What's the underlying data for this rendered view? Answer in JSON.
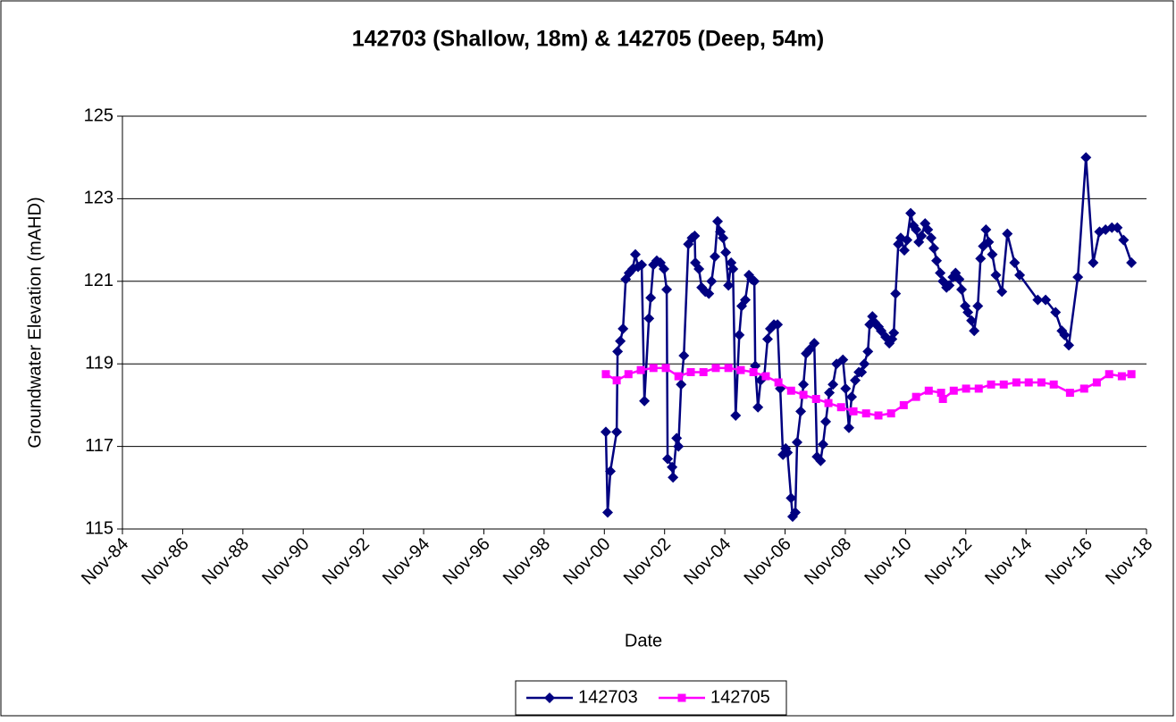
{
  "chart_data": {
    "type": "line",
    "title": "142703 (Shallow, 18m) & 142705 (Deep, 54m)",
    "x_label": "Date",
    "y_label": "Groundwater Elevation (mAHD)",
    "xlim": [
      1984.83,
      2018.83
    ],
    "xticks": [
      {
        "value": 1984.83,
        "label": "Nov-84"
      },
      {
        "value": 1986.83,
        "label": "Nov-86"
      },
      {
        "value": 1988.83,
        "label": "Nov-88"
      },
      {
        "value": 1990.83,
        "label": "Nov-90"
      },
      {
        "value": 1992.83,
        "label": "Nov-92"
      },
      {
        "value": 1994.83,
        "label": "Nov-94"
      },
      {
        "value": 1996.83,
        "label": "Nov-96"
      },
      {
        "value": 1998.83,
        "label": "Nov-98"
      },
      {
        "value": 2000.83,
        "label": "Nov-00"
      },
      {
        "value": 2002.83,
        "label": "Nov-02"
      },
      {
        "value": 2004.83,
        "label": "Nov-04"
      },
      {
        "value": 2006.83,
        "label": "Nov-06"
      },
      {
        "value": 2008.83,
        "label": "Nov-08"
      },
      {
        "value": 2010.83,
        "label": "Nov-10"
      },
      {
        "value": 2012.83,
        "label": "Nov-12"
      },
      {
        "value": 2014.83,
        "label": "Nov-14"
      },
      {
        "value": 2016.83,
        "label": "Nov-16"
      },
      {
        "value": 2018.83,
        "label": "Nov-18"
      }
    ],
    "ylim": [
      115,
      125
    ],
    "yticks": [
      115,
      117,
      119,
      121,
      123,
      125
    ],
    "grid": true,
    "legend": "bottom",
    "series": [
      {
        "name": "142703",
        "color": "#000080",
        "marker": "diamond",
        "x": [
          2000.88,
          2000.94,
          2001.03,
          2001.24,
          2001.27,
          2001.36,
          2001.45,
          2001.54,
          2001.65,
          2001.77,
          2001.86,
          2001.95,
          2002.07,
          2002.16,
          2002.31,
          2002.37,
          2002.46,
          2002.57,
          2002.69,
          2002.81,
          2002.9,
          2002.93,
          2003.08,
          2003.11,
          2003.23,
          2003.29,
          2003.38,
          2003.47,
          2003.62,
          2003.74,
          2003.83,
          2003.85,
          2003.97,
          2004.06,
          2004.18,
          2004.3,
          2004.39,
          2004.5,
          2004.59,
          2004.68,
          2004.77,
          2004.86,
          2004.95,
          2005.04,
          2005.1,
          2005.19,
          2005.31,
          2005.39,
          2005.51,
          2005.63,
          2005.72,
          2005.81,
          2005.84,
          2005.93,
          2006.02,
          2006.14,
          2006.25,
          2006.34,
          2006.46,
          2006.58,
          2006.67,
          2006.76,
          2006.85,
          2006.91,
          2007.03,
          2007.08,
          2007.17,
          2007.23,
          2007.35,
          2007.44,
          2007.53,
          2007.65,
          2007.8,
          2007.89,
          2008.01,
          2008.09,
          2008.18,
          2008.3,
          2008.42,
          2008.54,
          2008.75,
          2008.84,
          2008.95,
          2009.04,
          2009.16,
          2009.28,
          2009.37,
          2009.46,
          2009.58,
          2009.64,
          2009.73,
          2009.81,
          2009.93,
          2010.02,
          2010.17,
          2010.29,
          2010.38,
          2010.44,
          2010.5,
          2010.59,
          2010.67,
          2010.79,
          2010.88,
          2011.0,
          2011.09,
          2011.18,
          2011.27,
          2011.36,
          2011.48,
          2011.57,
          2011.68,
          2011.77,
          2011.86,
          2011.98,
          2012.07,
          2012.19,
          2012.28,
          2012.4,
          2012.49,
          2012.61,
          2012.69,
          2012.81,
          2012.9,
          2013.02,
          2013.11,
          2013.23,
          2013.32,
          2013.41,
          2013.5,
          2013.59,
          2013.71,
          2013.83,
          2014.03,
          2014.21,
          2014.45,
          2014.62,
          2015.22,
          2015.48,
          2015.81,
          2016.02,
          2016.11,
          2016.25,
          2016.55,
          2016.82,
          2017.06,
          2017.27,
          2017.47,
          2017.68,
          2017.86,
          2018.07,
          2018.33
        ],
        "values": [
          117.35,
          115.4,
          116.4,
          117.35,
          119.3,
          119.55,
          119.85,
          121.05,
          121.2,
          121.3,
          121.65,
          121.35,
          121.4,
          118.1,
          120.1,
          120.6,
          121.4,
          121.5,
          121.45,
          121.3,
          120.8,
          116.7,
          116.5,
          116.25,
          117.2,
          117.0,
          118.5,
          119.2,
          121.9,
          122.05,
          122.1,
          121.45,
          121.3,
          120.85,
          120.75,
          120.7,
          121.0,
          121.6,
          122.45,
          122.2,
          122.05,
          121.7,
          120.9,
          121.45,
          121.3,
          117.75,
          119.7,
          120.4,
          120.55,
          121.15,
          121.05,
          121.0,
          118.95,
          117.95,
          118.6,
          118.7,
          119.6,
          119.85,
          119.95,
          119.95,
          118.4,
          116.8,
          116.95,
          116.85,
          115.75,
          115.3,
          115.4,
          117.1,
          117.85,
          118.5,
          119.25,
          119.35,
          119.5,
          116.75,
          116.65,
          117.05,
          117.6,
          118.3,
          118.5,
          119.0,
          119.1,
          118.4,
          117.45,
          118.2,
          118.6,
          118.8,
          118.8,
          119.0,
          119.3,
          119.95,
          120.15,
          120.0,
          119.9,
          119.8,
          119.65,
          119.5,
          119.6,
          119.75,
          120.7,
          121.9,
          122.05,
          121.75,
          122.0,
          122.65,
          122.35,
          122.25,
          121.95,
          122.1,
          122.4,
          122.25,
          122.05,
          121.8,
          121.5,
          121.2,
          121.0,
          120.85,
          120.9,
          121.1,
          121.2,
          121.05,
          120.8,
          120.4,
          120.25,
          120.05,
          119.8,
          120.4,
          121.55,
          121.85,
          122.25,
          121.95,
          121.65,
          121.15,
          120.75,
          122.15,
          121.45,
          121.15,
          120.55,
          120.55,
          120.25,
          119.8,
          119.7,
          119.45,
          121.1,
          124.0,
          121.45,
          122.2,
          122.25,
          122.3,
          122.3,
          122.0,
          121.45
        ]
      },
      {
        "name": "142705",
        "color": "#ff00ff",
        "marker": "square",
        "x": [
          2000.88,
          2001.24,
          2001.63,
          2002.04,
          2002.46,
          2002.87,
          2003.29,
          2003.7,
          2004.12,
          2004.53,
          2004.95,
          2005.36,
          2005.78,
          2006.19,
          2006.61,
          2007.03,
          2007.44,
          2007.86,
          2008.27,
          2008.69,
          2009.1,
          2009.52,
          2009.93,
          2010.35,
          2010.77,
          2011.18,
          2011.6,
          2012.01,
          2012.07,
          2012.43,
          2012.84,
          2013.26,
          2013.67,
          2014.09,
          2014.51,
          2014.92,
          2015.34,
          2015.75,
          2016.29,
          2016.76,
          2017.18,
          2017.59,
          2018.01,
          2018.33
        ],
        "values": [
          118.75,
          118.6,
          118.75,
          118.85,
          118.9,
          118.9,
          118.7,
          118.8,
          118.8,
          118.9,
          118.9,
          118.85,
          118.8,
          118.7,
          118.55,
          118.35,
          118.25,
          118.15,
          118.05,
          117.95,
          117.85,
          117.8,
          117.75,
          117.8,
          118.0,
          118.2,
          118.35,
          118.3,
          118.15,
          118.35,
          118.4,
          118.4,
          118.5,
          118.5,
          118.55,
          118.55,
          118.55,
          118.5,
          118.3,
          118.4,
          118.55,
          118.75,
          118.7,
          118.75
        ]
      }
    ]
  }
}
